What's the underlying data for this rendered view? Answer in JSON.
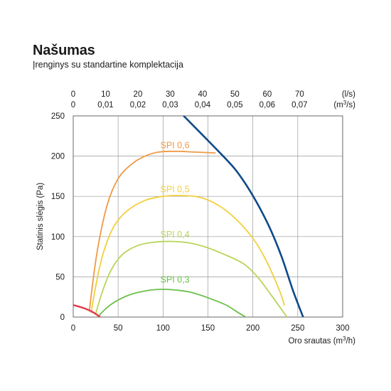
{
  "header": {
    "title": "Našumas",
    "subtitle": "Įrenginys su standartine komplektacija"
  },
  "chart_data": {
    "type": "line",
    "xlabel": "Oro srautas (m³/h)",
    "ylabel": "Statinis slėgis (Pa)",
    "xlim": [
      0,
      300
    ],
    "ylim": [
      0,
      250
    ],
    "x_ticks": [
      0,
      50,
      100,
      150,
      200,
      250,
      300
    ],
    "y_ticks": [
      0,
      50,
      100,
      150,
      200,
      250
    ],
    "grid": true,
    "top_axes": [
      {
        "unit": "(l/s)",
        "ticks": [
          "0",
          "10",
          "20",
          "30",
          "40",
          "50",
          "60",
          "70"
        ]
      },
      {
        "unit": "(m³/s)",
        "ticks": [
          "0",
          "0,01",
          "0,02",
          "0,03",
          "0,04",
          "0,05",
          "0,06",
          "0,07"
        ]
      }
    ],
    "series": [
      {
        "name": "SPI 0,6",
        "color": "#ef9a45",
        "label_at": [
          97,
          210
        ],
        "points": [
          [
            18,
            8
          ],
          [
            22,
            45
          ],
          [
            28,
            90
          ],
          [
            38,
            140
          ],
          [
            50,
            172
          ],
          [
            65,
            190
          ],
          [
            80,
            200
          ],
          [
            95,
            205
          ],
          [
            115,
            206
          ],
          [
            135,
            205
          ],
          [
            158,
            204
          ]
        ]
      },
      {
        "name": "SPI 0,5",
        "color": "#f2cf3c",
        "label_at": [
          97,
          155
        ],
        "points": [
          [
            20,
            6
          ],
          [
            25,
            38
          ],
          [
            33,
            78
          ],
          [
            45,
            112
          ],
          [
            60,
            132
          ],
          [
            80,
            145
          ],
          [
            100,
            150
          ],
          [
            120,
            151
          ],
          [
            140,
            149
          ],
          [
            160,
            140
          ],
          [
            180,
            123
          ],
          [
            200,
            98
          ],
          [
            215,
            70
          ],
          [
            230,
            32
          ],
          [
            235,
            15
          ]
        ]
      },
      {
        "name": "SPI 0,4",
        "color": "#b9d55a",
        "label_at": [
          97,
          99
        ],
        "points": [
          [
            25,
            4
          ],
          [
            32,
            30
          ],
          [
            42,
            58
          ],
          [
            55,
            78
          ],
          [
            72,
            89
          ],
          [
            90,
            93
          ],
          [
            110,
            94
          ],
          [
            130,
            92
          ],
          [
            150,
            86
          ],
          [
            170,
            77
          ],
          [
            190,
            66
          ],
          [
            205,
            50
          ],
          [
            220,
            28
          ],
          [
            238,
            0
          ]
        ]
      },
      {
        "name": "SPI 0,3",
        "color": "#6bbf48",
        "label_at": [
          97,
          43
        ],
        "points": [
          [
            27,
            0
          ],
          [
            40,
            14
          ],
          [
            55,
            24
          ],
          [
            70,
            30
          ],
          [
            90,
            34
          ],
          [
            110,
            34
          ],
          [
            130,
            31
          ],
          [
            150,
            24
          ],
          [
            170,
            15
          ],
          [
            183,
            6
          ],
          [
            192,
            0
          ]
        ]
      },
      {
        "name": "",
        "color": "#0f4a8a",
        "points": [
          [
            123,
            250
          ],
          [
            160,
            208
          ],
          [
            180,
            184
          ],
          [
            195,
            160
          ],
          [
            208,
            135
          ],
          [
            220,
            108
          ],
          [
            232,
            75
          ],
          [
            245,
            32
          ],
          [
            256,
            0
          ]
        ]
      },
      {
        "name": "",
        "color": "#e23b49",
        "points": [
          [
            0,
            15
          ],
          [
            12,
            11
          ],
          [
            22,
            6
          ],
          [
            30,
            0
          ]
        ]
      }
    ]
  }
}
